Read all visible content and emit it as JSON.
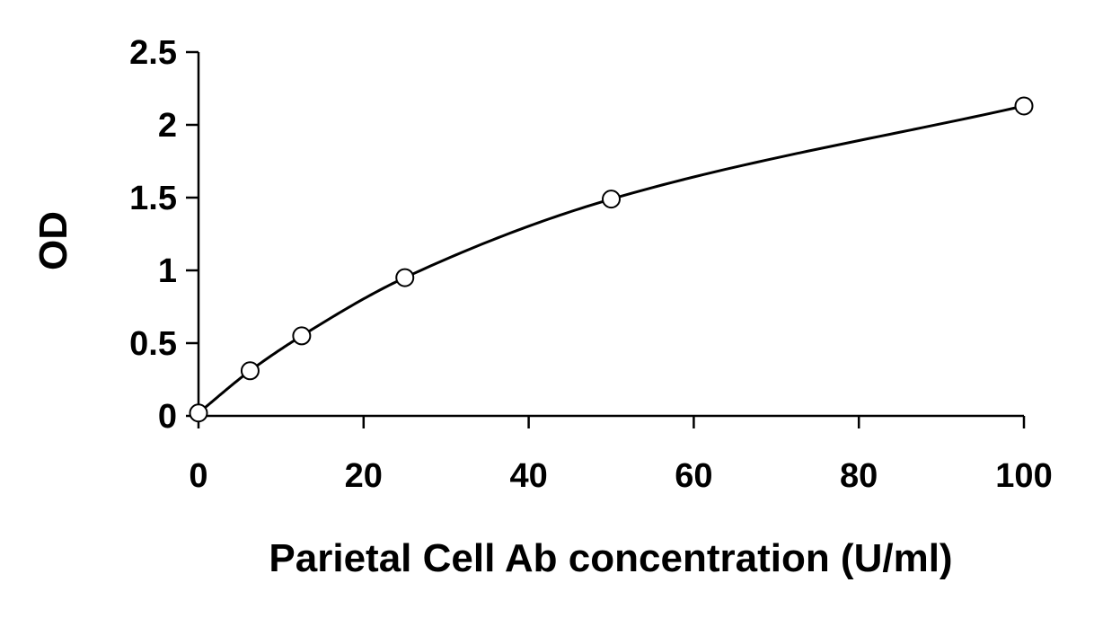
{
  "chart_data": {
    "type": "scatter",
    "title": "",
    "xlabel": "Parietal Cell Ab concentration (U/ml)",
    "ylabel": "OD",
    "xlim": [
      0,
      100
    ],
    "ylim": [
      0,
      2.5
    ],
    "x_ticks": [
      0,
      20,
      40,
      60,
      80,
      100
    ],
    "x_tick_labels": [
      "0",
      "20",
      "40",
      "60",
      "80",
      "100"
    ],
    "y_ticks": [
      0,
      0.5,
      1,
      1.5,
      2,
      2.5
    ],
    "y_tick_labels": [
      "0",
      "0.5",
      "1",
      "1.5",
      "2",
      "2.5"
    ],
    "grid": false,
    "legend": "none",
    "series": [
      {
        "x": [
          0,
          6.25,
          12.5,
          25,
          50,
          100
        ],
        "y": [
          0.02,
          0.31,
          0.55,
          0.95,
          1.49,
          2.13
        ],
        "marker": "open-circle",
        "fit_line": "smooth-curve"
      }
    ],
    "colors": {
      "line": "#000000",
      "marker_edge": "#000000",
      "marker_fill": "#ffffff",
      "axis": "#000000"
    }
  }
}
